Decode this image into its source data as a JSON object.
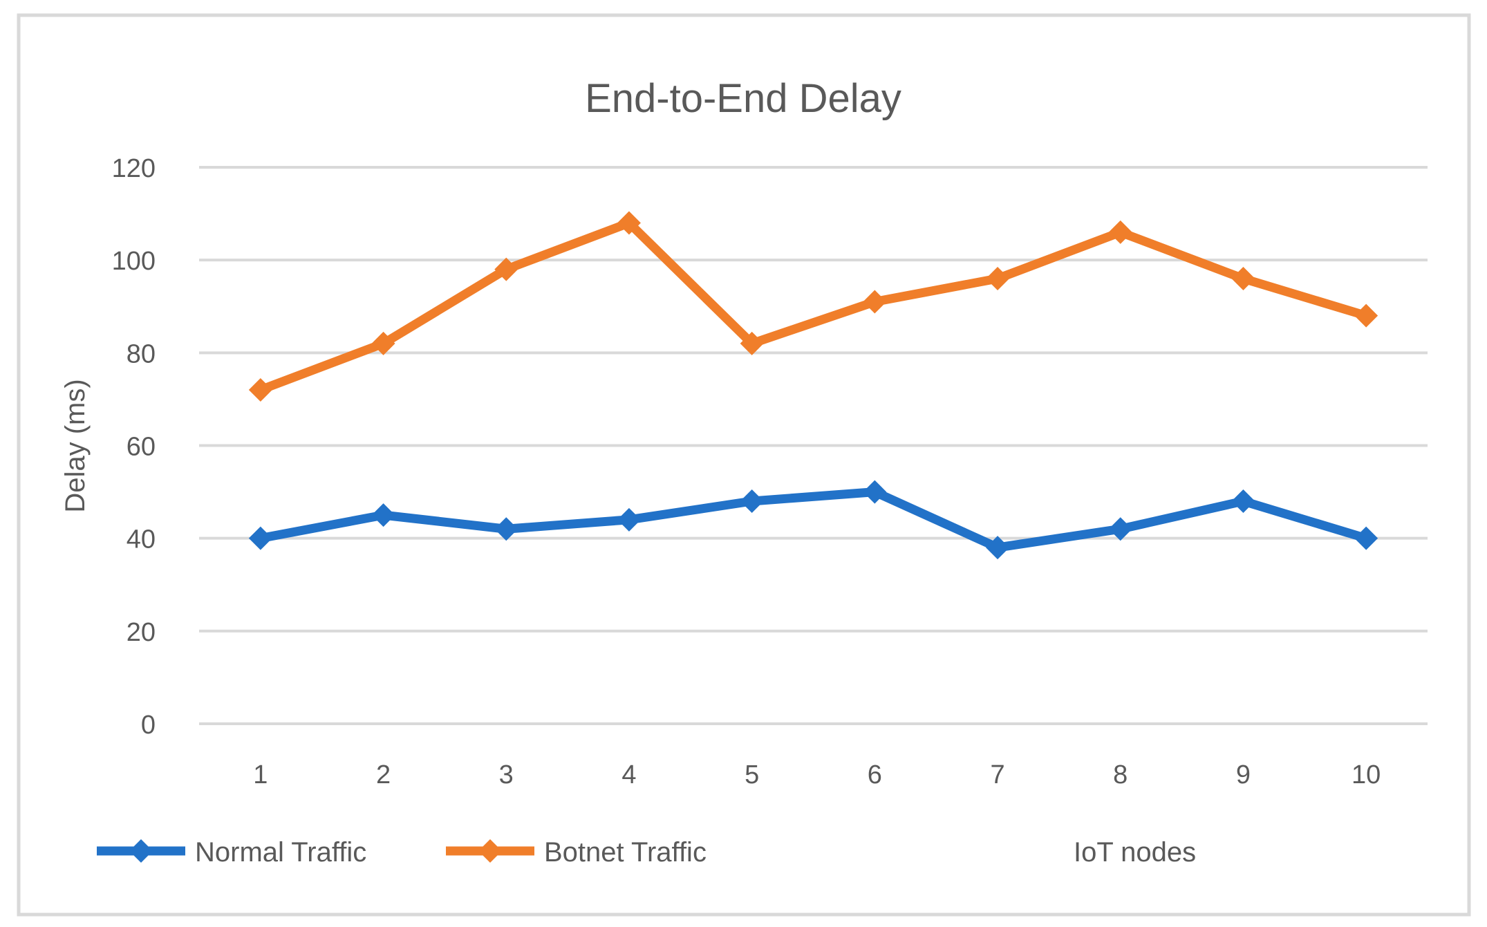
{
  "chart_data": {
    "type": "line",
    "title": "End-to-End Delay",
    "xlabel": "IoT nodes",
    "ylabel": "Delay (ms)",
    "categories": [
      "1",
      "2",
      "3",
      "4",
      "5",
      "6",
      "7",
      "8",
      "9",
      "10"
    ],
    "series": [
      {
        "name": "Normal Traffic",
        "color": "#2272C8",
        "values": [
          40,
          45,
          42,
          44,
          48,
          50,
          38,
          42,
          48,
          40
        ]
      },
      {
        "name": "Botnet Traffic",
        "color": "#F07E2A",
        "values": [
          72,
          82,
          98,
          108,
          82,
          91,
          96,
          106,
          96,
          88
        ]
      }
    ],
    "ylim": [
      0,
      120
    ],
    "ytick_step": 20,
    "yticks": [
      "0",
      "20",
      "40",
      "60",
      "80",
      "100",
      "120"
    ],
    "grid": true,
    "legend_position": "bottom",
    "grid_color": "#D9D9D9",
    "border_color": "#D9D9D9",
    "text_color": "#595959",
    "background_color": "#FFFFFF"
  }
}
